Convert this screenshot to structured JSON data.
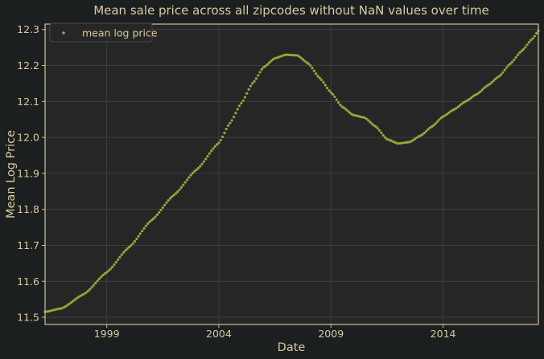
{
  "colors": {
    "figure_background": "#1c1f20",
    "axes_background": "#262626",
    "axes_frame": "#cfc29a",
    "grid": "#3e3e3e",
    "text": "#d9c9a0",
    "series": "#8faa3a"
  },
  "chart_data": {
    "type": "scatter",
    "title": "Mean sale price across all zipcodes without NaN values over time",
    "xlabel": "Date",
    "ylabel": "Mean Log Price",
    "xlim": [
      "1996-04",
      "2018-04"
    ],
    "ylim": [
      11.48,
      12.315
    ],
    "x_ticks": [
      "1999",
      "2004",
      "2009",
      "2014"
    ],
    "y_ticks": [
      "11.5",
      "11.6",
      "11.7",
      "11.8",
      "11.9",
      "12.0",
      "12.1",
      "12.2",
      "12.3"
    ],
    "grid": true,
    "legend": {
      "position": "top-left",
      "entries": [
        "mean log price"
      ]
    },
    "series": [
      {
        "name": "mean log price",
        "marker": "dot",
        "frequency": "monthly",
        "start": "1996-04",
        "end": "2018-04",
        "anchors": [
          [
            "1996-04",
            11.515
          ],
          [
            "1997-01",
            11.525
          ],
          [
            "1998-01",
            11.565
          ],
          [
            "1999-01",
            11.625
          ],
          [
            "2000-01",
            11.695
          ],
          [
            "2001-01",
            11.77
          ],
          [
            "2002-01",
            11.84
          ],
          [
            "2003-01",
            11.91
          ],
          [
            "2004-01",
            11.985
          ],
          [
            "2004-07",
            12.04
          ],
          [
            "2005-01",
            12.095
          ],
          [
            "2005-07",
            12.15
          ],
          [
            "2006-01",
            12.195
          ],
          [
            "2006-07",
            12.22
          ],
          [
            "2007-01",
            12.23
          ],
          [
            "2007-07",
            12.228
          ],
          [
            "2008-01",
            12.205
          ],
          [
            "2008-07",
            12.165
          ],
          [
            "2009-01",
            12.125
          ],
          [
            "2009-07",
            12.085
          ],
          [
            "2010-01",
            12.062
          ],
          [
            "2010-07",
            12.055
          ],
          [
            "2011-01",
            12.03
          ],
          [
            "2011-07",
            11.995
          ],
          [
            "2012-01",
            11.983
          ],
          [
            "2012-07",
            11.987
          ],
          [
            "2013-01",
            12.005
          ],
          [
            "2013-07",
            12.03
          ],
          [
            "2014-01",
            12.058
          ],
          [
            "2014-07",
            12.078
          ],
          [
            "2015-01",
            12.1
          ],
          [
            "2015-07",
            12.12
          ],
          [
            "2016-01",
            12.145
          ],
          [
            "2016-07",
            12.17
          ],
          [
            "2017-01",
            12.205
          ],
          [
            "2017-07",
            12.24
          ],
          [
            "2018-01",
            12.275
          ],
          [
            "2018-04",
            12.296
          ]
        ]
      }
    ]
  }
}
